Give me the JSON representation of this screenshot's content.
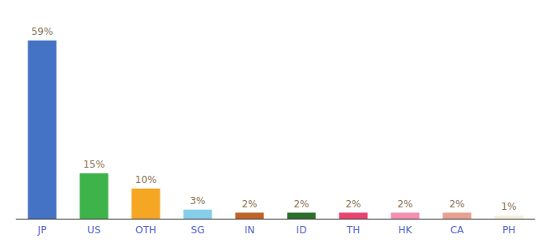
{
  "chart_data": {
    "type": "bar",
    "categories": [
      "JP",
      "US",
      "OTH",
      "SG",
      "IN",
      "ID",
      "TH",
      "HK",
      "CA",
      "PH"
    ],
    "values": [
      59,
      15,
      10,
      3,
      2,
      2,
      2,
      2,
      2,
      1
    ],
    "value_labels": [
      "59%",
      "15%",
      "10%",
      "3%",
      "2%",
      "2%",
      "2%",
      "2%",
      "2%",
      "1%"
    ],
    "colors": [
      "#4472c4",
      "#3db34a",
      "#f5a623",
      "#87ceeb",
      "#c0632a",
      "#2d6e2d",
      "#e8446e",
      "#f48fb1",
      "#e8a090",
      "#f5f0d8"
    ],
    "ylim": [
      0,
      66
    ],
    "grid": false,
    "data_labels": true,
    "tick_labels": "x"
  }
}
